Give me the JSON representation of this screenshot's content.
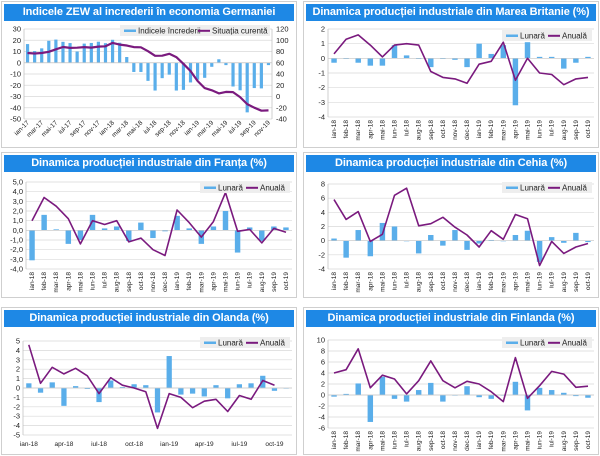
{
  "colors": {
    "banner": "#1e88e5",
    "bar": "#5aaeea",
    "line": "#7a1a7e",
    "grid": "#d9d9d9",
    "legend_bg": "#eeeeee"
  },
  "chart_data": [
    {
      "id": "germany",
      "type": "bar+line",
      "title": "Indicele  ZEW al increderii în economia Germaniei",
      "legend": [
        "Indicele încrederii",
        "Situația curentă"
      ],
      "legend_position": "top-right",
      "x_label_style": "rotated",
      "categories": [
        "ian-17",
        "feb-17",
        "mar-17",
        "apr-17",
        "mai-17",
        "iun-17",
        "iul-17",
        "aug-17",
        "sep-17",
        "oct-17",
        "nov-17",
        "dec-17",
        "ian-18",
        "feb-18",
        "mar-18",
        "apr-18",
        "mai-18",
        "iun-18",
        "iul-18",
        "aug-18",
        "sep-18",
        "oct-18",
        "nov-18",
        "dec-18",
        "ian-19",
        "feb-19",
        "mar-19",
        "apr-19",
        "mai-19",
        "iun-19",
        "iul-19",
        "aug-19",
        "sep-19",
        "oct-19",
        "nov-19"
      ],
      "x_tick_labels": [
        "ian-17",
        "mar-17",
        "mai-17",
        "iul-17",
        "sep-17",
        "nov-17",
        "ian-18",
        "mar-18",
        "mai-18",
        "iul-18",
        "sep-18",
        "nov-18",
        "ian-19",
        "mar-19",
        "mai-19",
        "iul-19",
        "sep-19",
        "nov-19"
      ],
      "y_ticks": [
        "30",
        "20",
        "10",
        "0",
        "-10",
        "-20",
        "-30",
        "-40",
        "-50"
      ],
      "ylim": [
        -50,
        30
      ],
      "y2_ticks": [
        "120",
        "100",
        "80",
        "60",
        "40",
        "20",
        "0",
        "-20",
        "-40"
      ],
      "y2lim": [
        -40,
        120
      ],
      "series": [
        {
          "name": "Indicele încrederii",
          "type": "bar",
          "axis": "left",
          "values": [
            16.6,
            10.4,
            12.8,
            19.5,
            20.6,
            18.6,
            17.5,
            10.0,
            17.0,
            17.6,
            18.7,
            17.4,
            20.4,
            17.8,
            5.1,
            -8.2,
            -8.2,
            -16.1,
            -24.7,
            -13.7,
            -10.6,
            -24.7,
            -24.1,
            -17.5,
            -15.1,
            -13.4,
            -3.6,
            3.1,
            -2.1,
            -21.1,
            -24.5,
            -44.1,
            -22.5,
            -22.8,
            -2.1
          ]
        },
        {
          "name": "Situația curentă",
          "type": "line",
          "axis": "right",
          "values": [
            77.3,
            76.4,
            77.3,
            79.4,
            83.9,
            88.0,
            86.4,
            86.7,
            87.9,
            87.0,
            88.8,
            89.3,
            95.2,
            92.3,
            90.7,
            87.9,
            87.4,
            80.6,
            72.4,
            72.6,
            76.0,
            70.1,
            58.2,
            45.3,
            27.6,
            15.0,
            11.1,
            5.5,
            8.2,
            7.8,
            -1.1,
            -13.5,
            -19.9,
            -25.3,
            -24.7
          ]
        }
      ]
    },
    {
      "id": "uk",
      "type": "bar+line",
      "title": "Dinamica producției industriale din Marea Britanie (%)",
      "legend": [
        "Lunară",
        "Anuală"
      ],
      "legend_position": "top-right",
      "x_label_style": "vertical",
      "categories": [
        "ian-18",
        "feb-18",
        "mar-18",
        "apr-18",
        "mai-18",
        "iun-18",
        "iul-18",
        "aug-18",
        "sep-18",
        "oct-18",
        "nov-18",
        "dec-18",
        "ian-19",
        "feb-19",
        "mar-19",
        "apr-19",
        "mai-19",
        "iun-19",
        "iul-19",
        "aug-19",
        "sep-19",
        "oct-19"
      ],
      "x_tick_labels": [
        "ian-18",
        "feb-18",
        "mar-18",
        "apr-18",
        "mai-18",
        "iun-18",
        "iul-18",
        "aug-18",
        "sep-18",
        "oct-18",
        "nov-18",
        "dec-18",
        "ian-19",
        "feb-19",
        "mar-19",
        "apr-19",
        "mai-19",
        "iun-19",
        "iul-19",
        "aug-19",
        "sep-19",
        "oct-19"
      ],
      "y_ticks": [
        "2",
        "1",
        "0",
        "-1",
        "-2",
        "-3",
        "-4"
      ],
      "ylim": [
        -4,
        2
      ],
      "series": [
        {
          "name": "Lunară",
          "type": "bar",
          "values": [
            -0.3,
            0.0,
            -0.3,
            -0.5,
            -0.5,
            0.9,
            0.2,
            0.0,
            -0.6,
            0.0,
            -0.1,
            -0.6,
            1.0,
            0.3,
            0.9,
            -3.2,
            1.1,
            0.1,
            0.1,
            -0.7,
            -0.3,
            0.1
          ]
        },
        {
          "name": "Anuală",
          "type": "line",
          "values": [
            0.3,
            1.3,
            1.6,
            0.9,
            0.1,
            0.9,
            1.0,
            0.9,
            -0.9,
            -1.3,
            -1.4,
            -1.7,
            -0.4,
            -0.2,
            1.1,
            -1.5,
            0.0,
            -1.0,
            -1.1,
            -1.8,
            -1.4,
            -1.3
          ]
        }
      ]
    },
    {
      "id": "france",
      "type": "bar+line",
      "title": "Dinamica producției industriale din Franța (%)",
      "legend": [
        "Lunară",
        "Anuală"
      ],
      "legend_position": "top-right",
      "x_label_style": "vertical",
      "categories": [
        "ian-18",
        "feb-18",
        "mar-18",
        "apr-18",
        "mai-18",
        "iun-18",
        "iul-18",
        "aug-18",
        "sep-18",
        "oct-18",
        "nov-18",
        "dec-18",
        "ian-19",
        "feb-19",
        "mar-19",
        "apr-19",
        "mai-19",
        "iun-19",
        "iul-19",
        "aug-19",
        "sep-19",
        "oct-19"
      ],
      "x_tick_labels": [
        "ian-18",
        "feb-18",
        "mar-18",
        "apr-18",
        "mai-18",
        "iun-18",
        "iul-18",
        "aug-18",
        "sep-18",
        "oct-18",
        "nov-18",
        "dec-18",
        "ian-19",
        "feb-19",
        "mar-19",
        "apr-19",
        "mai-19",
        "iun-19",
        "iul-19",
        "aug-19",
        "sep-19",
        "oct-19"
      ],
      "y_ticks": [
        "5,0",
        "4,0",
        "3,0",
        "2,0",
        "1,0",
        "0,0",
        "-1,0",
        "-2,0",
        "-3,0",
        "-4,0"
      ],
      "ylim": [
        -4,
        5
      ],
      "series": [
        {
          "name": "Lunară",
          "type": "bar",
          "values": [
            -3.1,
            1.6,
            0.1,
            -1.4,
            -1.0,
            1.6,
            0.2,
            0.4,
            -1.1,
            0.8,
            -0.8,
            -0.1,
            1.5,
            0.2,
            -1.4,
            0.4,
            2.0,
            -2.3,
            0.3,
            -1.1,
            0.4,
            0.3
          ]
        },
        {
          "name": "Anuală",
          "type": "line",
          "values": [
            1.0,
            3.4,
            2.5,
            1.2,
            -1.4,
            1.0,
            0.6,
            1.0,
            -1.2,
            -0.8,
            -2.0,
            -2.6,
            2.1,
            0.8,
            -0.7,
            0.9,
            3.9,
            -0.1,
            0.1,
            -1.3,
            0.2,
            -0.2
          ]
        }
      ]
    },
    {
      "id": "czechia",
      "type": "bar+line",
      "title": "Dinamica producției industriale din Cehia (%)",
      "legend": [
        "Lunară",
        "Anuală"
      ],
      "legend_position": "top-right",
      "x_label_style": "vertical",
      "categories": [
        "ian-18",
        "feb-18",
        "mar-18",
        "apr-18",
        "mai-18",
        "iun-18",
        "iul-18",
        "aug-18",
        "sep-18",
        "oct-18",
        "nov-18",
        "dec-18",
        "ian-19",
        "feb-19",
        "mar-19",
        "apr-19",
        "mai-19",
        "iun-19",
        "iul-19",
        "aug-19",
        "sep-19",
        "oct-19"
      ],
      "x_tick_labels": [
        "ian-18",
        "feb-18",
        "mar-18",
        "apr-18",
        "mai-18",
        "iun-18",
        "iul-18",
        "aug-18",
        "sep-18",
        "oct-18",
        "nov-18",
        "dec-18",
        "ian-19",
        "feb-19",
        "mar-19",
        "apr-19",
        "mai-19",
        "iun-19",
        "iul-19",
        "aug-19",
        "sep-19",
        "oct-19"
      ],
      "y_ticks": [
        "8",
        "6",
        "4",
        "2",
        "0",
        "-2",
        "-4"
      ],
      "ylim": [
        -4,
        8
      ],
      "series": [
        {
          "name": "Lunară",
          "type": "bar",
          "values": [
            0.3,
            -2.4,
            1.5,
            -2.2,
            2.5,
            2.0,
            0.0,
            -1.8,
            0.8,
            -0.7,
            1.5,
            -1.3,
            -0.4,
            0.1,
            0.0,
            0.8,
            1.4,
            -3.0,
            0.5,
            -0.3,
            1.1,
            -0.2
          ]
        },
        {
          "name": "Anuală",
          "type": "line",
          "values": [
            5.8,
            3.0,
            4.1,
            -0.1,
            0.9,
            6.4,
            7.4,
            2.1,
            2.4,
            3.3,
            1.9,
            0.8,
            -0.9,
            1.4,
            0.2,
            3.7,
            3.1,
            -3.5,
            -0.1,
            -1.8,
            -0.9,
            -0.4
          ]
        }
      ]
    },
    {
      "id": "netherlands",
      "type": "bar+line",
      "title": "Dinamica producției industriale din Olanda (%)",
      "legend": [
        "Lunară",
        "Anuală"
      ],
      "legend_position": "top-right",
      "x_label_style": "horizontal",
      "categories": [
        "ian-18",
        "feb-18",
        "mar-18",
        "apr-18",
        "mai-18",
        "iun-18",
        "iul-18",
        "aug-18",
        "sep-18",
        "oct-18",
        "nov-18",
        "dec-18",
        "ian-19",
        "feb-19",
        "mar-19",
        "apr-19",
        "mai-19",
        "iun-19",
        "iul-19",
        "aug-19",
        "sep-19",
        "oct-19",
        "nov-19"
      ],
      "x_tick_labels": [
        "ian-18",
        "",
        "",
        "apr-18",
        "",
        "",
        "iul-18",
        "",
        "",
        "oct-18",
        "",
        "",
        "ian-19",
        "",
        "",
        "apr-19",
        "",
        "",
        "iul-19",
        "",
        "",
        "oct-19",
        ""
      ],
      "y_ticks": [
        "5",
        "4",
        "3",
        "2",
        "1",
        "0",
        "-1",
        "-2",
        "-3",
        "-4",
        "-5"
      ],
      "ylim": [
        -5,
        5
      ],
      "series": [
        {
          "name": "Lunară",
          "type": "bar",
          "values": [
            0.5,
            -0.5,
            0.6,
            -1.9,
            0.2,
            -0.1,
            -1.5,
            0.8,
            0.1,
            0.4,
            0.3,
            -2.6,
            3.4,
            -0.7,
            -0.6,
            -0.9,
            0.3,
            -1.1,
            0.4,
            0.5,
            1.3,
            -0.3,
            0.0
          ]
        },
        {
          "name": "Anuală",
          "type": "line",
          "values": [
            4.6,
            0.5,
            2.2,
            1.5,
            2.1,
            1.3,
            -0.6,
            1.1,
            0.3,
            0.0,
            -0.4,
            -4.3,
            -0.6,
            -1.0,
            -2.1,
            -1.4,
            -1.2,
            -2.5,
            -0.8,
            -1.2,
            0.8,
            0.3,
            null
          ]
        }
      ]
    },
    {
      "id": "finland",
      "type": "bar+line",
      "title": "Dinamica producției industriale din Finlanda (%)",
      "legend": [
        "Lunară",
        "Anuală"
      ],
      "legend_position": "top-right",
      "x_label_style": "vertical",
      "categories": [
        "ian-18",
        "feb-18",
        "mar-18",
        "apr-18",
        "mai-18",
        "iun-18",
        "iul-18",
        "aug-18",
        "sep-18",
        "oct-18",
        "nov-18",
        "dec-18",
        "ian-19",
        "feb-19",
        "mar-19",
        "apr-19",
        "mai-19",
        "iun-19",
        "iul-19",
        "aug-19",
        "sep-19",
        "oct-19"
      ],
      "x_tick_labels": [
        "ian-18",
        "feb-18",
        "mar-18",
        "apr-18",
        "mai-18",
        "iun-18",
        "iul-18",
        "aug-18",
        "sep-18",
        "oct-18",
        "nov-18",
        "dec-18",
        "ian-19",
        "feb-19",
        "mar-19",
        "apr-19",
        "mai-19",
        "iun-19",
        "iul-19",
        "aug-19",
        "sep-19",
        "oct-19"
      ],
      "y_ticks": [
        "10",
        "8",
        "6",
        "4",
        "2",
        "0",
        "-2",
        "-4",
        "-6"
      ],
      "ylim": [
        -6,
        10
      ],
      "series": [
        {
          "name": "Lunară",
          "type": "bar",
          "values": [
            -0.3,
            0.2,
            2.1,
            -4.9,
            3.3,
            -0.7,
            -1.2,
            0.9,
            2.2,
            -1.2,
            -0.1,
            1.6,
            -0.4,
            -0.7,
            0.0,
            2.4,
            -2.8,
            1.3,
            0.9,
            0.4,
            -0.2,
            -0.5
          ]
        },
        {
          "name": "Anuală",
          "type": "line",
          "values": [
            4.0,
            4.6,
            8.4,
            1.3,
            3.6,
            2.9,
            0.2,
            2.6,
            6.2,
            2.6,
            1.3,
            2.5,
            2.0,
            0.6,
            -1.2,
            6.8,
            -0.6,
            1.7,
            4.3,
            3.8,
            1.4,
            1.6
          ]
        }
      ]
    }
  ]
}
